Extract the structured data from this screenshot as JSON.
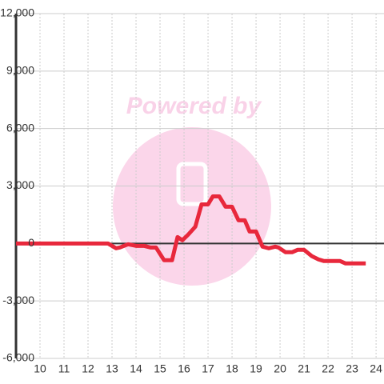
{
  "watermark": "Powered by",
  "chart_data": {
    "type": "line",
    "x": [
      9.0,
      12.83,
      13.17,
      13.33,
      13.67,
      14.0,
      14.33,
      14.6,
      14.83,
      15.17,
      15.5,
      15.73,
      15.93,
      16.17,
      16.47,
      16.73,
      17.0,
      17.2,
      17.47,
      17.73,
      18.0,
      18.27,
      18.53,
      18.73,
      19.0,
      19.27,
      19.53,
      19.8,
      19.93,
      20.23,
      20.5,
      20.73,
      21.0,
      21.33,
      21.6,
      21.83,
      22.17,
      22.5,
      22.73,
      23.0,
      23.57
    ],
    "series": [
      {
        "color": "#e8283c",
        "values": [
          0,
          0,
          -250,
          -208,
          -42,
          -125,
          -125,
          -208,
          -208,
          -875,
          -875,
          333,
          167,
          458,
          875,
          2042,
          2042,
          2458,
          2458,
          1917,
          1917,
          1208,
          1208,
          625,
          625,
          -167,
          -250,
          -167,
          -208,
          -458,
          -458,
          -333,
          -333,
          -667,
          -833,
          -917,
          -917,
          -917,
          -1042,
          -1042,
          -1042
        ]
      }
    ],
    "xlim": [
      9,
      24.33
    ],
    "xticks": [
      10,
      11,
      12,
      13,
      14,
      15,
      16,
      17,
      18,
      19,
      20,
      21,
      22,
      23,
      24
    ],
    "ylim": [
      -6000,
      12000
    ],
    "yticks": [
      {
        "value": -6000,
        "label": "-6,000"
      },
      {
        "value": -3000,
        "label": "-3,000"
      },
      0,
      {
        "value": 3000,
        "label": "3,000"
      },
      {
        "value": 6000,
        "label": "6,000"
      },
      {
        "value": 9000,
        "label": "9,000"
      },
      {
        "value": 12000,
        "label": "12,000"
      }
    ],
    "grid": true
  }
}
